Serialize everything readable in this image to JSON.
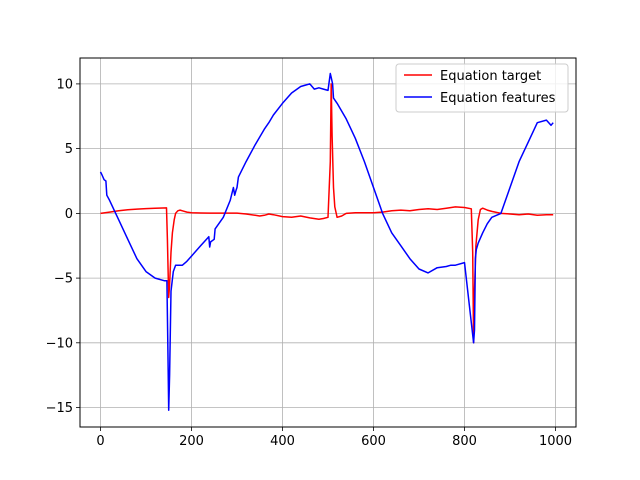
{
  "chart_data": {
    "type": "line",
    "title": "",
    "xlabel": "",
    "ylabel": "",
    "xlim": [
      -45,
      1045
    ],
    "ylim": [
      -16.5,
      12
    ],
    "xticks": [
      0,
      200,
      400,
      600,
      800,
      1000
    ],
    "yticks": [
      -15,
      -10,
      -5,
      0,
      5,
      10
    ],
    "xtick_labels": [
      "0",
      "200",
      "400",
      "600",
      "800",
      "1000"
    ],
    "ytick_labels": [
      "−15",
      "−10",
      "−5",
      "0",
      "5",
      "10"
    ],
    "grid": true,
    "legend_position": "upper-right",
    "series": [
      {
        "name": "Equation target",
        "color": "#ff0000",
        "x": [
          0,
          20,
          40,
          60,
          80,
          100,
          120,
          145,
          147,
          150,
          152,
          155,
          158,
          162,
          165,
          170,
          175,
          180,
          190,
          200,
          220,
          240,
          260,
          280,
          300,
          320,
          340,
          350,
          360,
          370,
          380,
          400,
          420,
          440,
          460,
          480,
          490,
          500,
          505,
          507,
          509,
          512,
          515,
          520,
          530,
          540,
          560,
          580,
          600,
          620,
          640,
          660,
          680,
          700,
          720,
          740,
          760,
          780,
          800,
          815,
          818,
          820,
          822,
          825,
          830,
          835,
          840,
          850,
          860,
          880,
          900,
          920,
          940,
          960,
          980,
          995
        ],
        "values": [
          0.0,
          0.1,
          0.2,
          0.28,
          0.33,
          0.37,
          0.4,
          0.42,
          -2.0,
          -6.5,
          -5.5,
          -3.0,
          -1.5,
          -0.5,
          0.0,
          0.2,
          0.25,
          0.2,
          0.1,
          0.05,
          0.03,
          0.02,
          0.02,
          0.02,
          0.02,
          -0.05,
          -0.15,
          -0.2,
          -0.15,
          -0.05,
          -0.1,
          -0.25,
          -0.3,
          -0.2,
          -0.35,
          -0.45,
          -0.4,
          -0.3,
          4.0,
          10.0,
          6.0,
          2.0,
          0.5,
          -0.3,
          -0.2,
          0.0,
          0.05,
          0.05,
          0.05,
          0.1,
          0.2,
          0.25,
          0.2,
          0.3,
          0.35,
          0.3,
          0.4,
          0.5,
          0.45,
          0.35,
          -3.0,
          -10.0,
          -6.0,
          -2.5,
          -0.5,
          0.3,
          0.4,
          0.25,
          0.15,
          0.0,
          -0.05,
          -0.1,
          -0.05,
          -0.15,
          -0.1,
          -0.1
        ]
      },
      {
        "name": "Equation features",
        "color": "#0000ff",
        "x": [
          0,
          3,
          8,
          12,
          14,
          20,
          40,
          60,
          80,
          100,
          120,
          140,
          146,
          148,
          150,
          152,
          155,
          160,
          165,
          170,
          180,
          190,
          200,
          220,
          238,
          240,
          242,
          250,
          252,
          270,
          285,
          292,
          295,
          298,
          300,
          303,
          320,
          340,
          360,
          370,
          380,
          400,
          420,
          440,
          460,
          470,
          480,
          490,
          500,
          505,
          507,
          510,
          512,
          520,
          540,
          560,
          580,
          600,
          620,
          640,
          660,
          680,
          700,
          720,
          740,
          760,
          770,
          780,
          800,
          820,
          822,
          824,
          826,
          830,
          840,
          850,
          860,
          880,
          900,
          920,
          940,
          960,
          980,
          990,
          995
        ],
        "values": [
          3.2,
          3.0,
          2.6,
          2.5,
          1.4,
          1.0,
          -0.5,
          -2.0,
          -3.5,
          -4.5,
          -5.0,
          -5.2,
          -5.2,
          -10.0,
          -15.2,
          -12.5,
          -6.0,
          -4.5,
          -4.0,
          -4.0,
          -4.0,
          -3.7,
          -3.3,
          -2.5,
          -1.8,
          -2.6,
          -2.2,
          -2.0,
          -1.2,
          -0.3,
          1.0,
          2.0,
          1.4,
          1.8,
          2.0,
          2.8,
          4.0,
          5.3,
          6.5,
          7.0,
          7.6,
          8.5,
          9.3,
          9.8,
          10.0,
          9.6,
          9.7,
          9.6,
          9.5,
          10.8,
          10.5,
          10.0,
          8.9,
          8.5,
          7.3,
          5.8,
          4.0,
          2.0,
          0.0,
          -1.5,
          -2.5,
          -3.5,
          -4.3,
          -4.6,
          -4.2,
          -4.1,
          -4.0,
          -4.0,
          -3.8,
          -10.0,
          -9.0,
          -3.5,
          -2.8,
          -2.3,
          -1.5,
          -0.8,
          -0.3,
          0.0,
          2.0,
          4.0,
          5.5,
          7.0,
          7.2,
          6.8,
          7.0
        ]
      }
    ]
  }
}
